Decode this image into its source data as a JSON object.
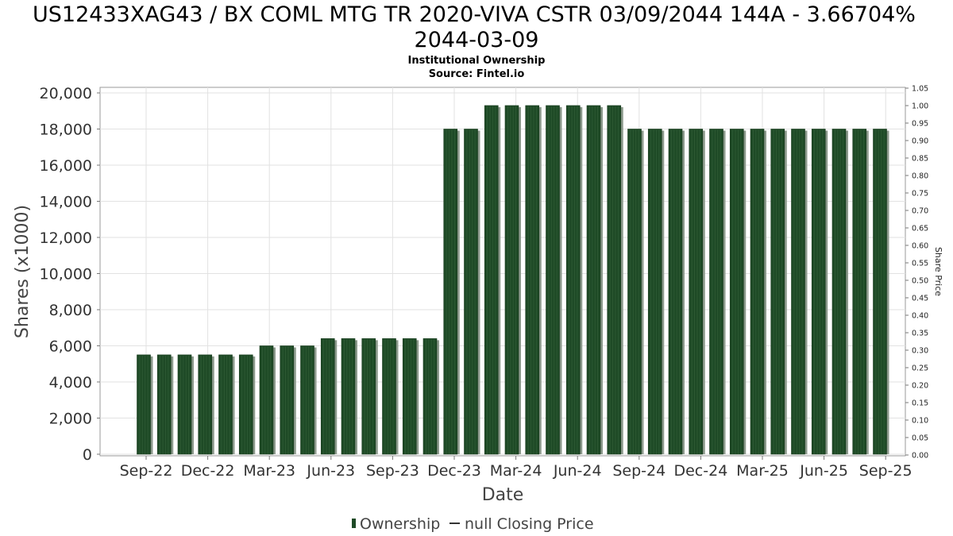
{
  "chart_data": {
    "type": "bar",
    "title_line1": "US12433XAG43 / BX COML MTG TR 2020-VIVA CSTR 03/09/2044 144A - 3.66704%",
    "title_line2": "2044-03-09",
    "subtitle": "Institutional Ownership",
    "source": "Source: Fintel.io",
    "xlabel": "Date",
    "ylabel": "Shares (x1000)",
    "y2label": "Share Price",
    "ylim": [
      0,
      20000
    ],
    "y_ticks": [
      "0",
      "2,000",
      "4,000",
      "6,000",
      "8,000",
      "10,000",
      "12,000",
      "14,000",
      "16,000",
      "18,000",
      "20,000"
    ],
    "y2lim": [
      0.0,
      1.05
    ],
    "y2_ticks": [
      "0.00",
      "0.05",
      "0.10",
      "0.15",
      "0.20",
      "0.25",
      "0.30",
      "0.35",
      "0.40",
      "0.45",
      "0.50",
      "0.55",
      "0.60",
      "0.65",
      "0.70",
      "0.75",
      "0.80",
      "0.85",
      "0.90",
      "0.95",
      "1.00",
      "1.05"
    ],
    "x_ticks": [
      "Sep-22",
      "Dec-22",
      "Mar-23",
      "Jun-23",
      "Sep-23",
      "Dec-23",
      "Mar-24",
      "Jun-24",
      "Sep-24",
      "Dec-24",
      "Mar-25",
      "Jun-25",
      "Sep-25"
    ],
    "series": [
      {
        "name": "Ownership",
        "values": [
          5500,
          5500,
          5500,
          5500,
          5500,
          5500,
          6000,
          6000,
          6000,
          6400,
          6400,
          6400,
          6400,
          6400,
          6400,
          18000,
          18000,
          19300,
          19300,
          19300,
          19300,
          19300,
          19300,
          19300,
          18000,
          18000,
          18000,
          18000,
          18000,
          18000,
          18000,
          18000,
          18000,
          18000,
          18000,
          18000,
          18000
        ]
      },
      {
        "name": "null Closing Price",
        "values": []
      }
    ],
    "grid": true,
    "legend_placement": "bottom-center",
    "colors": {
      "bar": "#1e4a26",
      "bar_shadow": "#8c9a8c",
      "grid": "#e2e2e2"
    }
  }
}
